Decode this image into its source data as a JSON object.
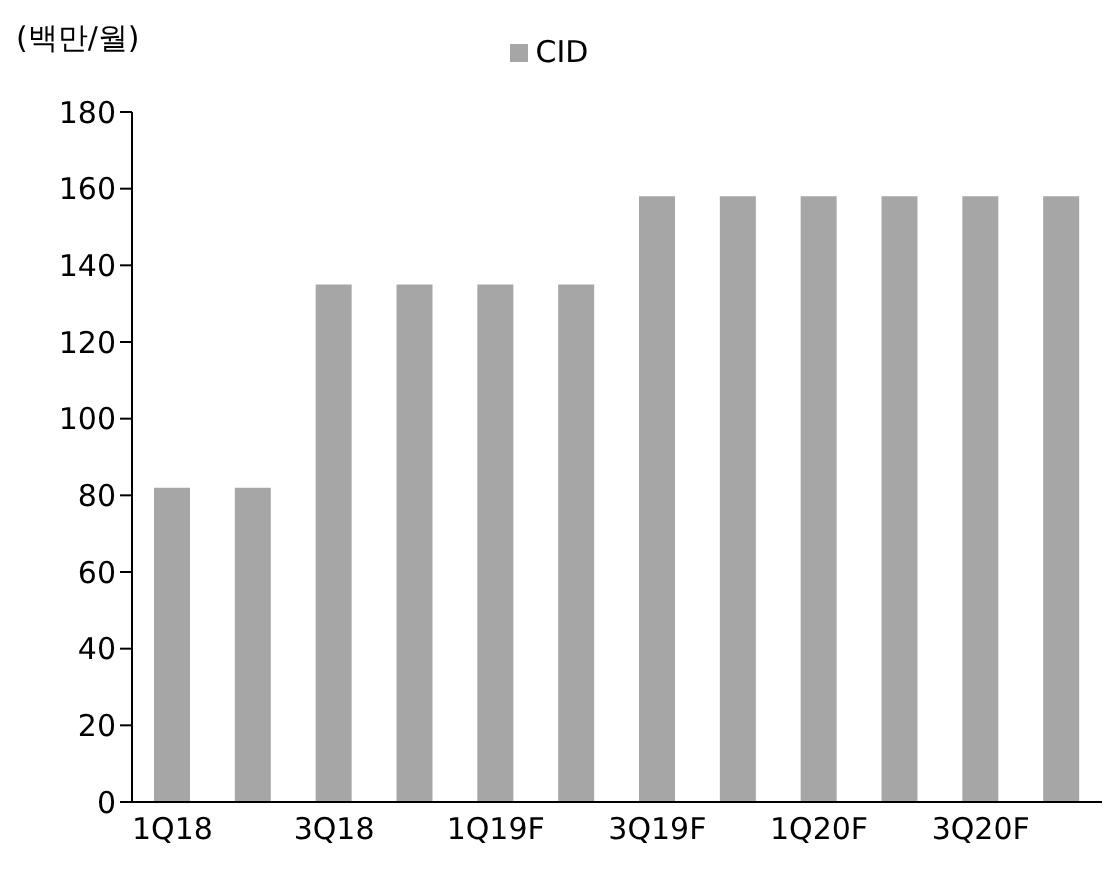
{
  "chart_data": {
    "type": "bar",
    "ylabel": "(백만/월)",
    "categories": [
      "1Q18",
      null,
      "3Q18",
      null,
      "1Q19F",
      null,
      "3Q19F",
      null,
      "1Q20F",
      null,
      "3Q20F",
      null
    ],
    "series": [
      {
        "name": "CID",
        "color": "#a6a6a6",
        "values": [
          82,
          82,
          135,
          135,
          135,
          135,
          158,
          158,
          158,
          158,
          158,
          158
        ]
      }
    ],
    "ylim": [
      0,
      180
    ],
    "yticks": [
      0,
      20,
      40,
      60,
      80,
      100,
      120,
      140,
      160,
      180
    ],
    "grid": false,
    "legend": "top"
  }
}
